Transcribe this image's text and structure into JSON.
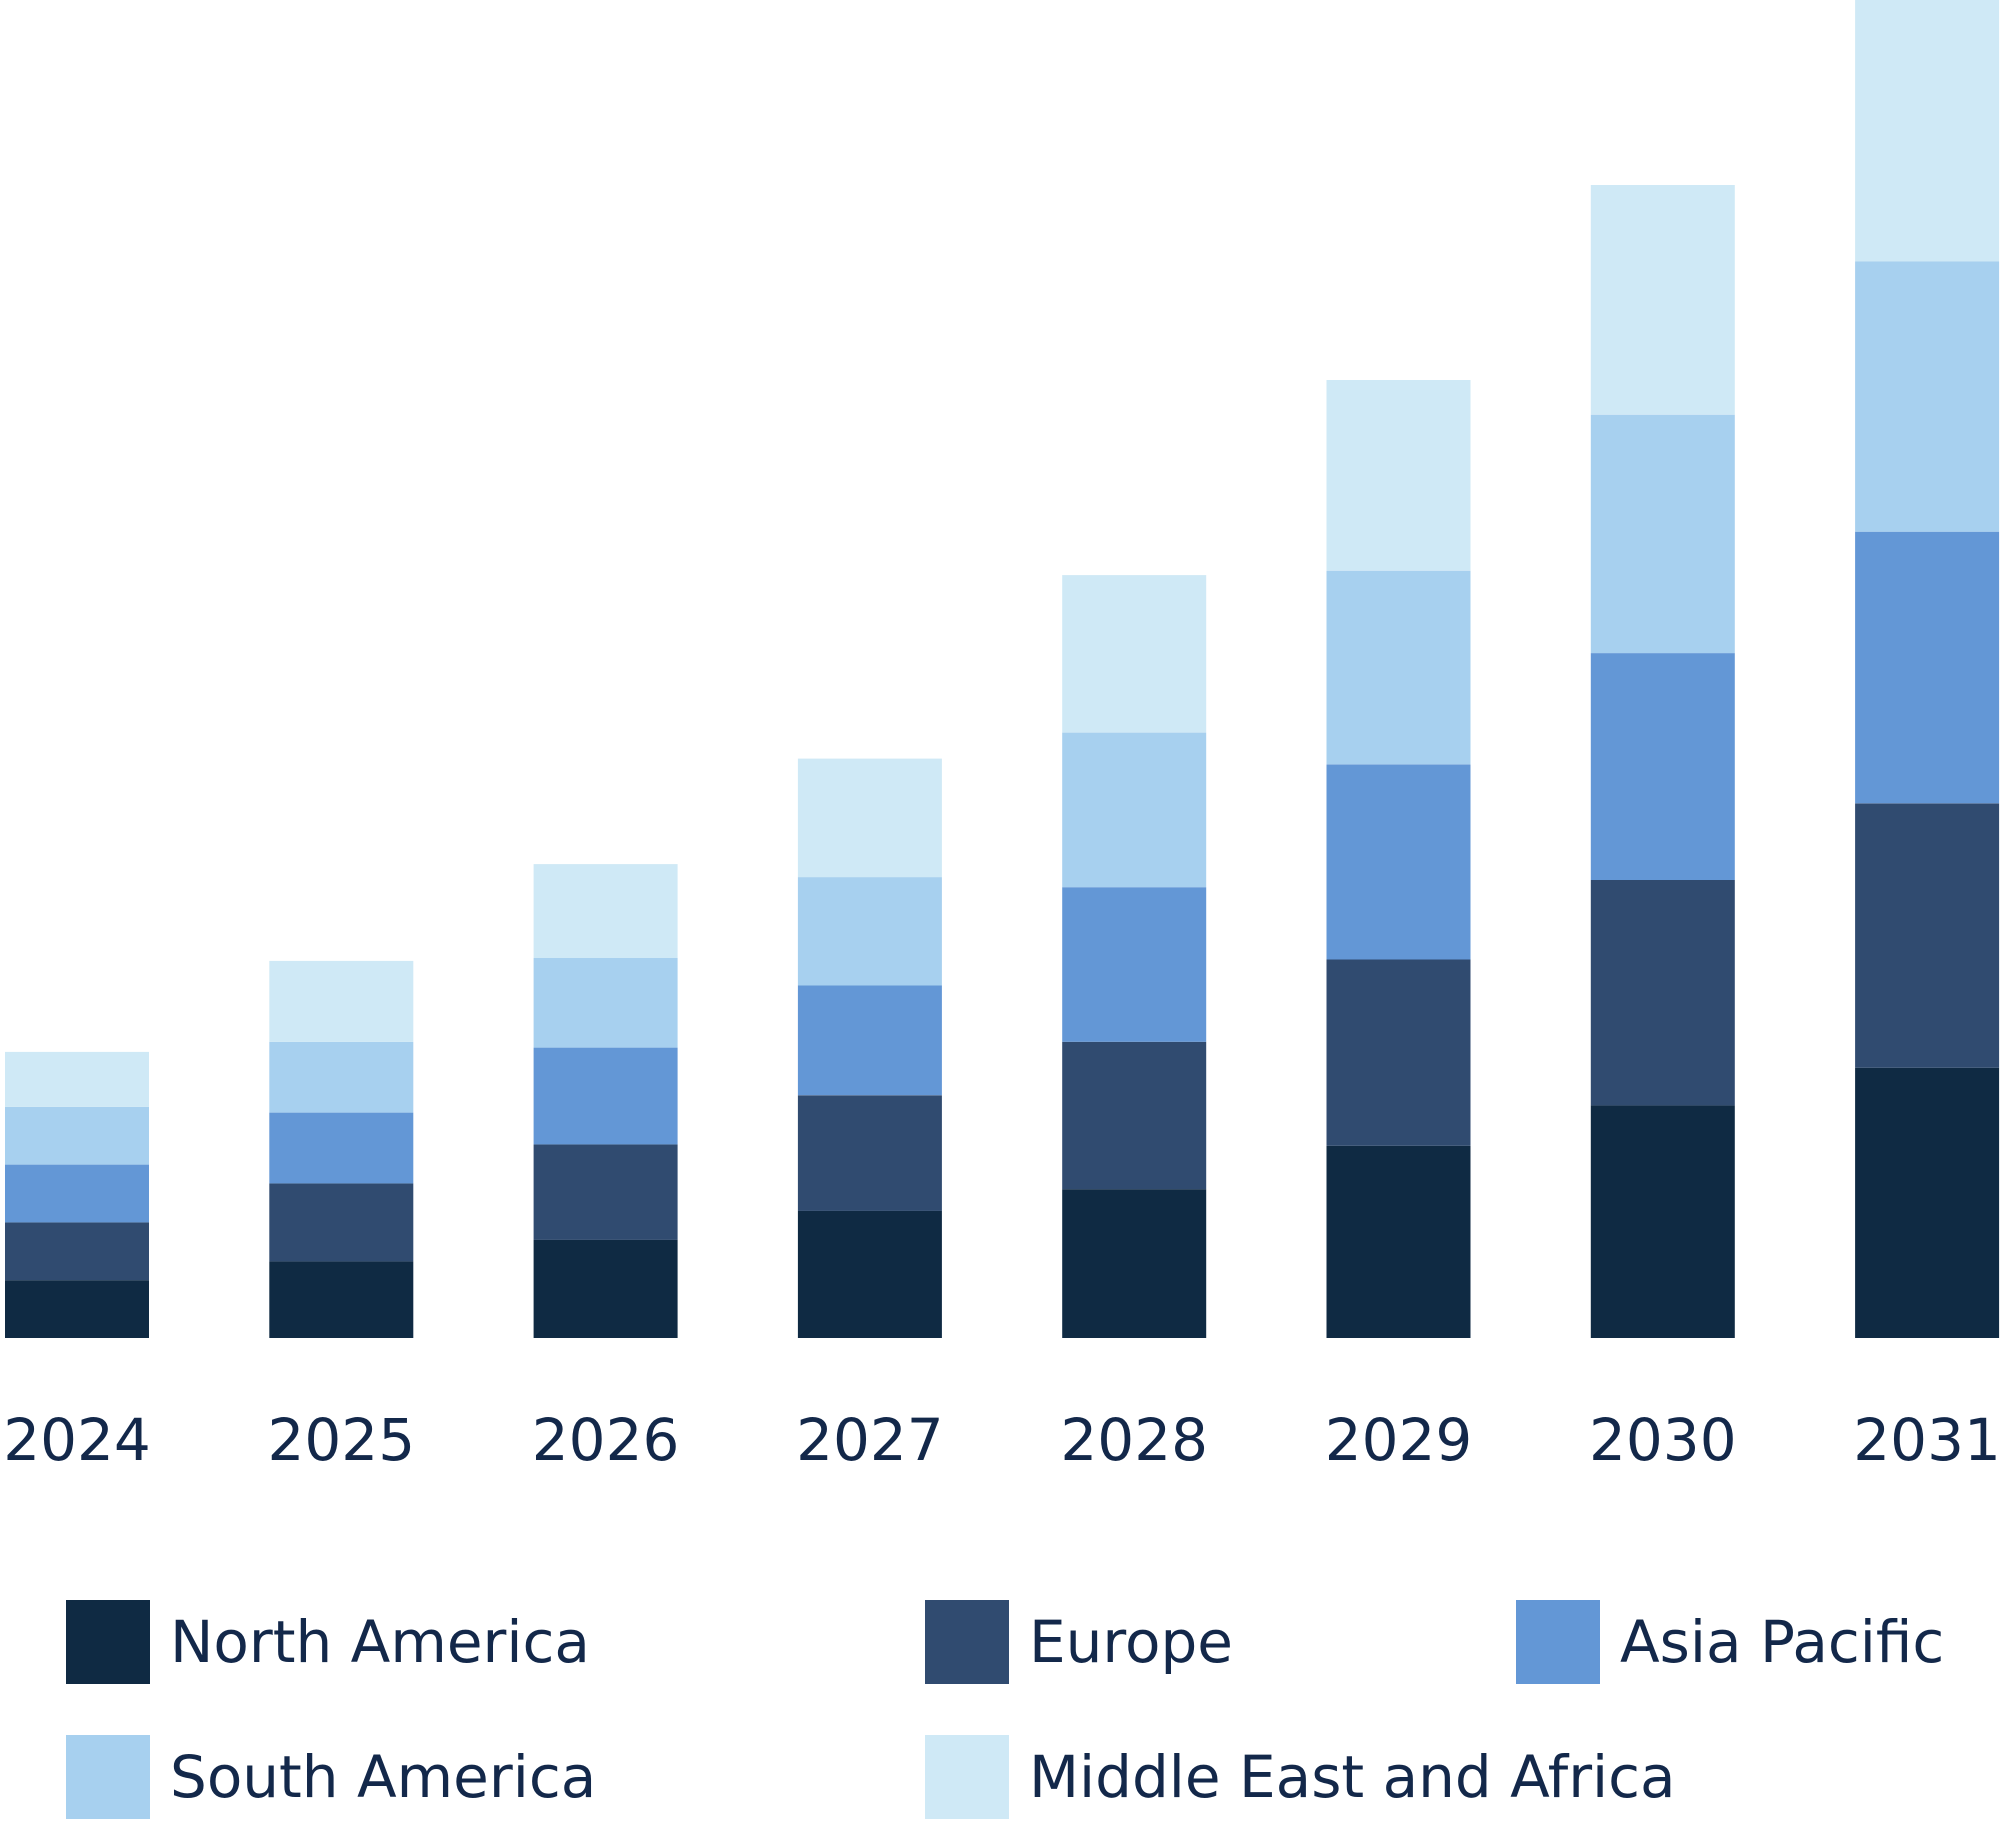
{
  "chart_data": {
    "type": "bar",
    "stacked": true,
    "categories": [
      "2024",
      "2025",
      "2026",
      "2027",
      "2028",
      "2029",
      "2030",
      "2031"
    ],
    "series": [
      {
        "name": "North America",
        "color": "#0f2a43",
        "values": [
          4.0,
          5.3,
          6.8,
          8.8,
          10.3,
          13.3,
          16.1,
          18.7
        ]
      },
      {
        "name": "Europe",
        "color": "#304b70",
        "values": [
          4.0,
          5.4,
          6.6,
          8.0,
          10.2,
          12.9,
          15.6,
          18.3
        ]
      },
      {
        "name": "Asia Pacific",
        "color": "#6397d6",
        "values": [
          4.0,
          4.9,
          6.7,
          7.6,
          10.7,
          13.5,
          15.7,
          18.8
        ]
      },
      {
        "name": "South America",
        "color": "#a7d0ef",
        "values": [
          4.0,
          4.9,
          6.2,
          7.5,
          10.7,
          13.4,
          16.5,
          18.7
        ]
      },
      {
        "name": "Middle East and Africa",
        "color": "#cfe9f6",
        "values": [
          3.8,
          5.6,
          6.5,
          8.2,
          10.9,
          13.2,
          15.9,
          18.1
        ]
      }
    ],
    "title": "",
    "xlabel": "",
    "ylabel": "",
    "ylim": [
      0,
      92.6
    ],
    "grid": false,
    "legend_position": "bottom",
    "legend_columns": 3
  }
}
